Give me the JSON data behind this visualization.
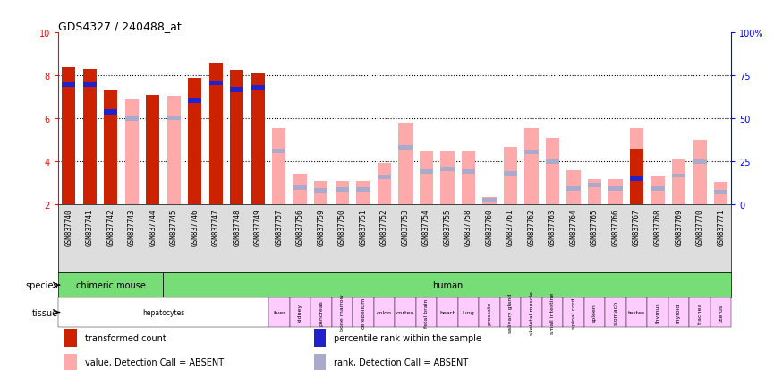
{
  "title": "GDS4327 / 240488_at",
  "samples": [
    "GSM837740",
    "GSM837741",
    "GSM837742",
    "GSM837743",
    "GSM837744",
    "GSM837745",
    "GSM837746",
    "GSM837747",
    "GSM837748",
    "GSM837749",
    "GSM837757",
    "GSM837756",
    "GSM837759",
    "GSM837750",
    "GSM837751",
    "GSM837752",
    "GSM837753",
    "GSM837754",
    "GSM837755",
    "GSM837758",
    "GSM837760",
    "GSM837761",
    "GSM837762",
    "GSM837763",
    "GSM837764",
    "GSM837765",
    "GSM837766",
    "GSM837767",
    "GSM837768",
    "GSM837769",
    "GSM837770",
    "GSM837771"
  ],
  "red_values": [
    8.4,
    8.3,
    7.3,
    0,
    7.1,
    0,
    7.9,
    8.6,
    8.25,
    8.1,
    0,
    0,
    0,
    0,
    0,
    0,
    0,
    0,
    0,
    0,
    0,
    0,
    0,
    0,
    0,
    0,
    0,
    4.6,
    0,
    0,
    0,
    0
  ],
  "pink_values": [
    0,
    0,
    0,
    6.9,
    0,
    7.05,
    0,
    0,
    0,
    0,
    5.55,
    3.45,
    3.12,
    3.12,
    3.12,
    3.95,
    5.8,
    4.5,
    4.5,
    4.5,
    2.35,
    4.7,
    5.55,
    5.1,
    3.6,
    3.2,
    3.2,
    5.55,
    3.3,
    4.15,
    5.0,
    3.05
  ],
  "blue_values": [
    7.6,
    7.6,
    6.3,
    0,
    0,
    0,
    6.85,
    7.65,
    7.35,
    7.45,
    0,
    0,
    0,
    0,
    0,
    0,
    0,
    0,
    0,
    0,
    0,
    0,
    0,
    0,
    0,
    0,
    0,
    3.2,
    0,
    0,
    0,
    0
  ],
  "lightblue_values": [
    0,
    0,
    0,
    6.0,
    0,
    6.05,
    0,
    0,
    0,
    0,
    4.5,
    2.8,
    2.65,
    2.7,
    2.7,
    3.3,
    4.65,
    3.55,
    3.65,
    3.55,
    2.2,
    3.45,
    4.45,
    4.0,
    2.75,
    2.9,
    2.75,
    0,
    2.75,
    3.35,
    4.0,
    2.6
  ],
  "ymin": 2,
  "ymax": 10,
  "yticks_left": [
    2,
    4,
    6,
    8,
    10
  ],
  "yticks_right": [
    0,
    25,
    50,
    75,
    100
  ],
  "bar_color_red": "#cc2200",
  "bar_color_pink": "#ffaaaa",
  "bar_color_blue": "#2222cc",
  "bar_color_lightblue": "#aaaacc",
  "grid_color": "black",
  "title_fontsize": 9,
  "tick_fontsize": 5.5,
  "axis_fontsize": 7,
  "legend_fontsize": 7,
  "species_data": [
    {
      "label": "chimeric mouse",
      "start": 0,
      "end": 5,
      "color": "#77dd77"
    },
    {
      "label": "human",
      "start": 5,
      "end": 32,
      "color": "#77dd77"
    }
  ],
  "tissue_data": [
    {
      "label": "hepatocytes",
      "start": 0,
      "end": 10,
      "color": "#ffffff",
      "rotate": false
    },
    {
      "label": "liver",
      "start": 10,
      "end": 11,
      "color": "#ffccff",
      "rotate": false
    },
    {
      "label": "kidney",
      "start": 11,
      "end": 12,
      "color": "#ffccff",
      "rotate": true
    },
    {
      "label": "pancreas",
      "start": 12,
      "end": 13,
      "color": "#ffccff",
      "rotate": true
    },
    {
      "label": "bone marrow",
      "start": 13,
      "end": 14,
      "color": "#ffccff",
      "rotate": true
    },
    {
      "label": "cerebellum",
      "start": 14,
      "end": 15,
      "color": "#ffccff",
      "rotate": true
    },
    {
      "label": "colon",
      "start": 15,
      "end": 16,
      "color": "#ffccff",
      "rotate": false
    },
    {
      "label": "cortex",
      "start": 16,
      "end": 17,
      "color": "#ffccff",
      "rotate": false
    },
    {
      "label": "fetal brain",
      "start": 17,
      "end": 18,
      "color": "#ffccff",
      "rotate": true
    },
    {
      "label": "heart",
      "start": 18,
      "end": 19,
      "color": "#ffccff",
      "rotate": false
    },
    {
      "label": "lung",
      "start": 19,
      "end": 20,
      "color": "#ffccff",
      "rotate": false
    },
    {
      "label": "prostate",
      "start": 20,
      "end": 21,
      "color": "#ffccff",
      "rotate": true
    },
    {
      "label": "salivary gland",
      "start": 21,
      "end": 22,
      "color": "#ffccff",
      "rotate": true
    },
    {
      "label": "skeletal muscle",
      "start": 22,
      "end": 23,
      "color": "#ffccff",
      "rotate": true
    },
    {
      "label": "small intestine",
      "start": 23,
      "end": 24,
      "color": "#ffccff",
      "rotate": true
    },
    {
      "label": "spinal cord",
      "start": 24,
      "end": 25,
      "color": "#ffccff",
      "rotate": true
    },
    {
      "label": "spleen",
      "start": 25,
      "end": 26,
      "color": "#ffccff",
      "rotate": true
    },
    {
      "label": "stomach",
      "start": 26,
      "end": 27,
      "color": "#ffccff",
      "rotate": true
    },
    {
      "label": "testes",
      "start": 27,
      "end": 28,
      "color": "#ffccff",
      "rotate": false
    },
    {
      "label": "thymus",
      "start": 28,
      "end": 29,
      "color": "#ffccff",
      "rotate": true
    },
    {
      "label": "thyroid",
      "start": 29,
      "end": 30,
      "color": "#ffccff",
      "rotate": true
    },
    {
      "label": "trachea",
      "start": 30,
      "end": 31,
      "color": "#ffccff",
      "rotate": true
    },
    {
      "label": "uterus",
      "start": 31,
      "end": 32,
      "color": "#ffccff",
      "rotate": true
    }
  ]
}
